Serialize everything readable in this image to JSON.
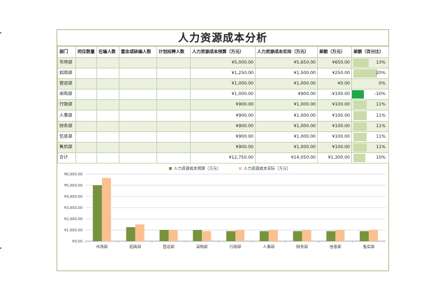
{
  "sheet": {
    "title": "人力资源成本分析",
    "headers": [
      "部门",
      "岗位数量",
      "在编人数",
      "富余或缺编人数",
      "计划招聘人数",
      "人力资源成本预算（万元）",
      "人力资源成本实际（万元）",
      "差额（万元）",
      "差额（百分比）"
    ],
    "rows": [
      {
        "dept": "市场部",
        "budget": "¥5,000.00",
        "actual": "¥5,650.00",
        "diff": "¥650.00",
        "pct": "13%",
        "pct_value": 13
      },
      {
        "dept": "招商部",
        "budget": "¥1,250.00",
        "actual": "¥1,500.00",
        "diff": "¥250.00",
        "pct": "20%",
        "pct_value": 20
      },
      {
        "dept": "营运部",
        "budget": "¥1,000.00",
        "actual": "¥1,000.00",
        "diff": "¥0.00",
        "pct": "0%",
        "pct_value": 0
      },
      {
        "dept": "采购部",
        "budget": "¥1,000.00",
        "actual": "¥900.00",
        "diff": "-¥100.00",
        "pct": "-10%",
        "pct_value": -10
      },
      {
        "dept": "行政部",
        "budget": "¥900.00",
        "actual": "¥1,000.00",
        "diff": "¥100.00",
        "pct": "11%",
        "pct_value": 11
      },
      {
        "dept": "人事部",
        "budget": "¥900.00",
        "actual": "¥1,000.00",
        "diff": "¥100.00",
        "pct": "11%",
        "pct_value": 11
      },
      {
        "dept": "财务部",
        "budget": "¥900.00",
        "actual": "¥1,000.00",
        "diff": "¥100.00",
        "pct": "11%",
        "pct_value": 11
      },
      {
        "dept": "信息部",
        "budget": "¥900.00",
        "actual": "¥1,000.00",
        "diff": "¥100.00",
        "pct": "11%",
        "pct_value": 11
      },
      {
        "dept": "售后部",
        "budget": "¥900.00",
        "actual": "¥1,000.00",
        "diff": "¥100.00",
        "pct": "11%",
        "pct_value": 11
      },
      {
        "dept": "合计",
        "budget": "¥12,750.00",
        "actual": "¥14,050.00",
        "diff": "¥1,300.00",
        "pct": "10%",
        "pct_value": 10
      }
    ],
    "colors": {
      "row_band": "#ebf1de",
      "grid": "#c6d2b0",
      "databar_positive": "#c9dcaa",
      "databar_negative": "#1ea84b",
      "series_budget": "#77933c",
      "series_actual": "#fac090"
    }
  },
  "chart_data": {
    "type": "bar",
    "categories": [
      "市场部",
      "招商部",
      "营运部",
      "采购部",
      "行政部",
      "人事部",
      "财务部",
      "信息部",
      "售后部"
    ],
    "series": [
      {
        "name": "人力资源成本预算（万元）",
        "values": [
          5000,
          1250,
          1000,
          1000,
          900,
          900,
          900,
          900,
          900
        ]
      },
      {
        "name": "人力资源成本实际（万元）",
        "values": [
          5650,
          1500,
          1000,
          900,
          1000,
          1000,
          1000,
          1000,
          1000
        ]
      }
    ],
    "y_ticks": [
      "¥0.00",
      "¥1,000.00",
      "¥2,000.00",
      "¥3,000.00",
      "¥4,000.00",
      "¥5,000.00",
      "¥6,000.00"
    ],
    "ylim": [
      0,
      6000
    ],
    "grid": true,
    "legend_position": "top"
  }
}
